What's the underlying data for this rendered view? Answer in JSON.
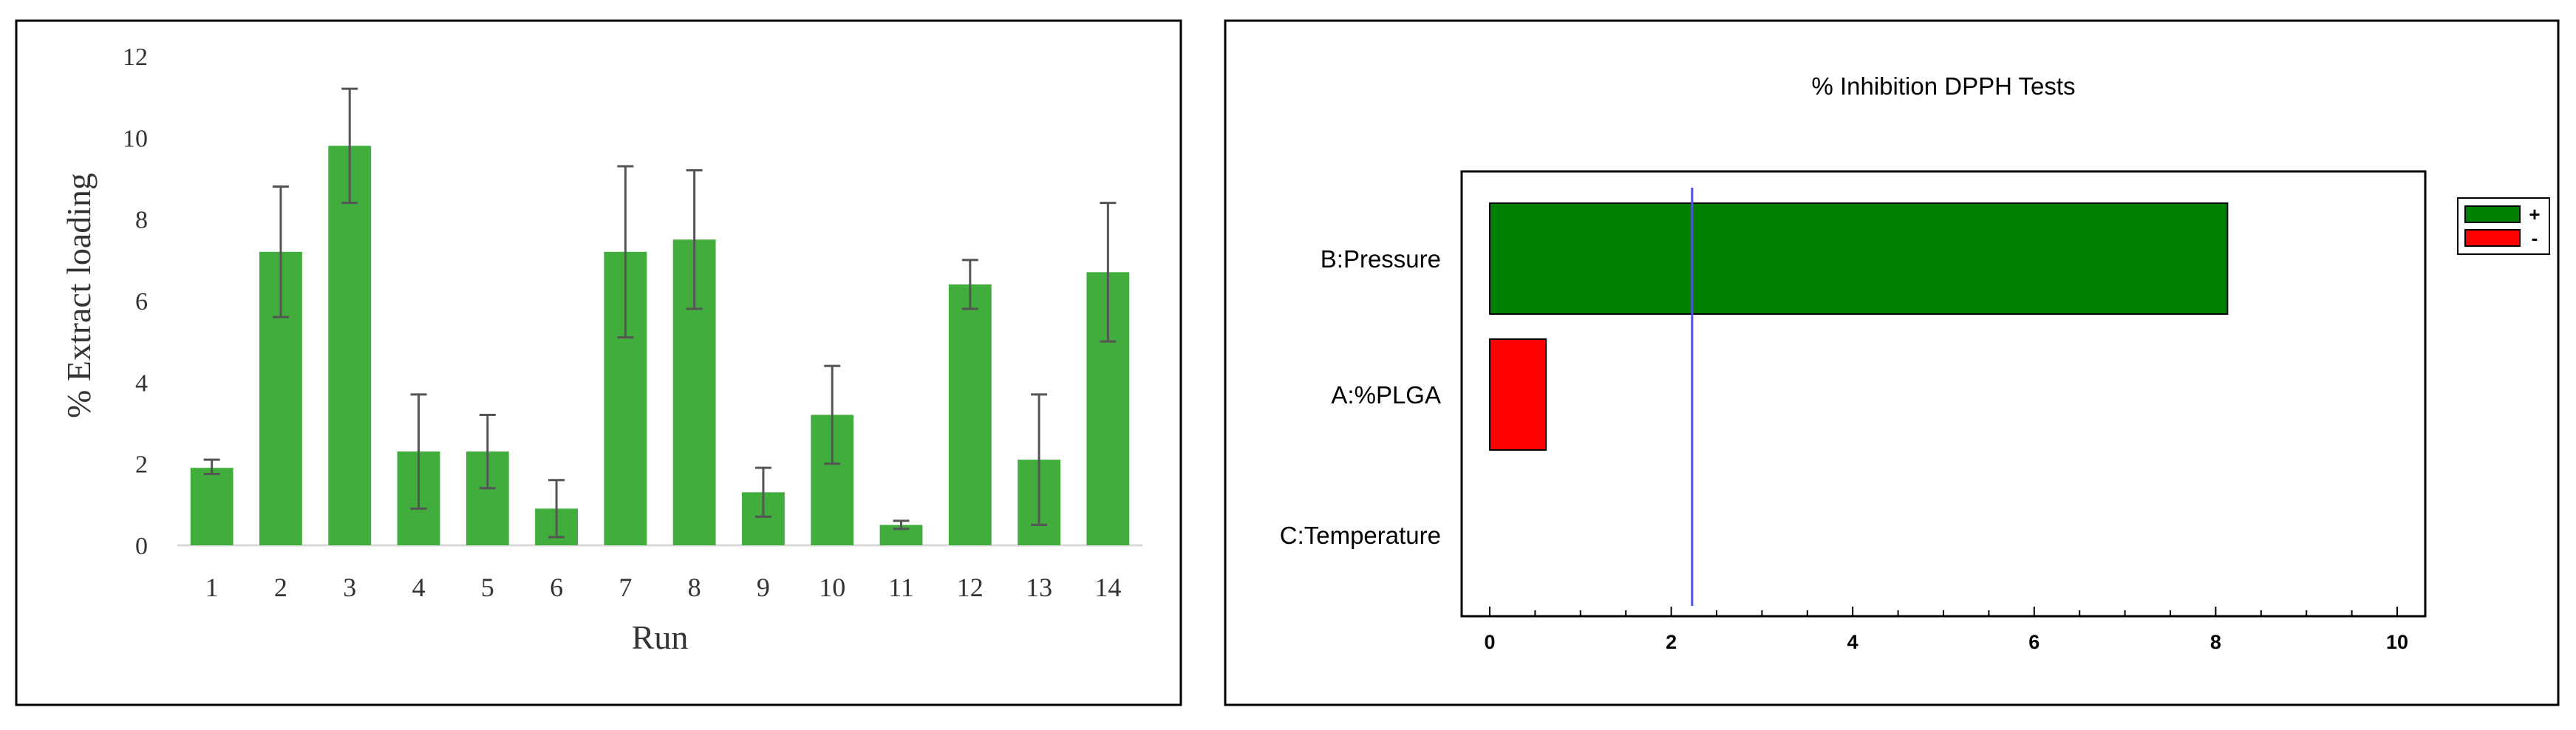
{
  "chart_data": [
    {
      "type": "bar",
      "title": "",
      "xlabel": "Run",
      "ylabel": "% Extract loading",
      "ylim": [
        0,
        12
      ],
      "yticks": [
        0,
        2,
        4,
        6,
        8,
        10,
        12
      ],
      "grid": false,
      "categories": [
        "1",
        "2",
        "3",
        "4",
        "5",
        "6",
        "7",
        "8",
        "9",
        "10",
        "11",
        "12",
        "13",
        "14"
      ],
      "values": [
        1.9,
        7.2,
        9.8,
        2.3,
        2.3,
        0.9,
        7.2,
        7.5,
        1.3,
        3.2,
        0.5,
        6.4,
        2.1,
        6.7
      ],
      "error_low": [
        1.75,
        5.6,
        8.4,
        0.9,
        1.4,
        0.2,
        5.1,
        5.8,
        0.7,
        2.0,
        0.4,
        5.8,
        0.5,
        5.0
      ],
      "error_high": [
        2.1,
        8.8,
        11.2,
        3.7,
        3.2,
        1.6,
        9.3,
        9.2,
        1.9,
        4.4,
        0.6,
        7.0,
        3.7,
        8.4
      ],
      "bar_color": "#41ad3c",
      "error_color": "#555555"
    },
    {
      "type": "bar",
      "orientation": "horizontal",
      "title": "% Inhibition DPPH Tests",
      "xlim": [
        0,
        10
      ],
      "xticks": [
        0,
        2,
        4,
        6,
        8,
        10
      ],
      "grid": false,
      "categories": [
        "B:Pressure",
        "A:%PLGA",
        "C:Temperature"
      ],
      "values": [
        8.13,
        0.62,
        0.0
      ],
      "signs": [
        "+",
        "-",
        "+"
      ],
      "reference_line": 2.23,
      "reference_color": "#5050e0",
      "legend": {
        "placement": "top-right",
        "entries": [
          {
            "label": "+",
            "color": "#008000"
          },
          {
            "label": "-",
            "color": "#ff0000"
          }
        ]
      }
    }
  ]
}
